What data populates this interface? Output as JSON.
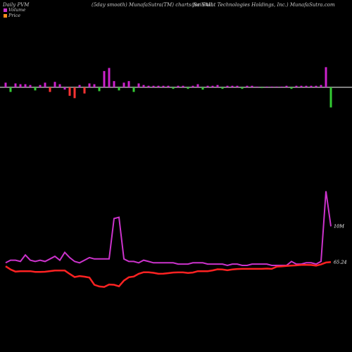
{
  "header": {
    "left": "Daily PVM",
    "center": "(5day smooth) MunafaSutra(TM) charts for SAIL",
    "right": "(SailPoint Technologies Holdings, Inc.) MunafaSutra.com"
  },
  "legend": [
    {
      "label": "Volume",
      "color": "#cc33cc"
    },
    {
      "label": "Price",
      "color": "#ff8c1a"
    }
  ],
  "colors": {
    "background": "#000000",
    "bar_up": "#cc22cc",
    "bar_down": "#33cc33",
    "bar_red": "#ff3333",
    "baseline": "#ffffff",
    "volume_line": "#cc33cc",
    "price_line": "#ff2222"
  },
  "chart_data": {
    "type": "line",
    "x_count": 67,
    "volume_bars": {
      "values": [
        6,
        -6,
        5,
        4,
        4,
        3,
        -4,
        3,
        6,
        -6,
        7,
        4,
        -3,
        -11,
        -14,
        3,
        -8,
        5,
        4,
        -5,
        21,
        25,
        8,
        -4,
        6,
        8,
        -6,
        5,
        3,
        2,
        2,
        2,
        2,
        2,
        -2,
        2,
        2,
        -2,
        2,
        4,
        -3,
        2,
        2,
        3,
        -2,
        2,
        2,
        2,
        -2,
        2,
        2,
        1,
        -1,
        1,
        1,
        1,
        1,
        2,
        -2,
        2,
        2,
        2,
        2,
        2,
        3,
        26,
        -26
      ],
      "colors": [
        "m",
        "g",
        "m",
        "m",
        "m",
        "m",
        "g",
        "m",
        "m",
        "r",
        "m",
        "m",
        "m",
        "r",
        "r",
        "m",
        "r",
        "m",
        "m",
        "g",
        "m",
        "m",
        "m",
        "g",
        "m",
        "m",
        "g",
        "m",
        "m",
        "m",
        "m",
        "m",
        "m",
        "m",
        "g",
        "m",
        "m",
        "g",
        "m",
        "m",
        "g",
        "m",
        "m",
        "m",
        "g",
        "m",
        "m",
        "m",
        "g",
        "m",
        "m",
        "m",
        "g",
        "m",
        "m",
        "m",
        "m",
        "m",
        "g",
        "m",
        "m",
        "m",
        "m",
        "m",
        "m",
        "m",
        "g"
      ]
    },
    "series": [
      {
        "label_text": "10M",
        "values": [
          20,
          22,
          22,
          21,
          26,
          22,
          21,
          22,
          21,
          23,
          25,
          22,
          28,
          24,
          21,
          20,
          22,
          24,
          23,
          23,
          23,
          23,
          54,
          55,
          23,
          21,
          21,
          20,
          22,
          21,
          20,
          20,
          20,
          20,
          20,
          19,
          19,
          19,
          20,
          20,
          20,
          19,
          19,
          19,
          19,
          18,
          19,
          19,
          18,
          18,
          19,
          19,
          19,
          19,
          18,
          18,
          18,
          18,
          21,
          19,
          19,
          20,
          20,
          19,
          21,
          75,
          48
        ]
      },
      {
        "label_text": "65.24",
        "values": [
          53.1,
          50.6,
          49.0,
          49.3,
          49.3,
          49.3,
          48.8,
          48.8,
          48.9,
          49.4,
          49.8,
          49.8,
          49.8,
          47.2,
          44.8,
          45.6,
          45.1,
          44.4,
          38.9,
          37.6,
          37.2,
          39.1,
          38.9,
          37.7,
          42.1,
          44.7,
          45.2,
          47.3,
          48.5,
          48.5,
          48.1,
          47.3,
          47.4,
          47.8,
          48.3,
          48.4,
          48.4,
          47.9,
          48.3,
          49.3,
          49.3,
          49.3,
          49.9,
          50.8,
          50.6,
          50.1,
          50.6,
          51.0,
          51.1,
          51.1,
          51.1,
          51.1,
          51.1,
          51.3,
          51.1,
          52.8,
          53.0,
          53.4,
          53.6,
          53.8,
          54.2,
          54.2,
          54.1,
          53.6,
          54.5,
          56.0,
          56.3
        ]
      }
    ],
    "xlabel": "",
    "ylabel": ""
  }
}
